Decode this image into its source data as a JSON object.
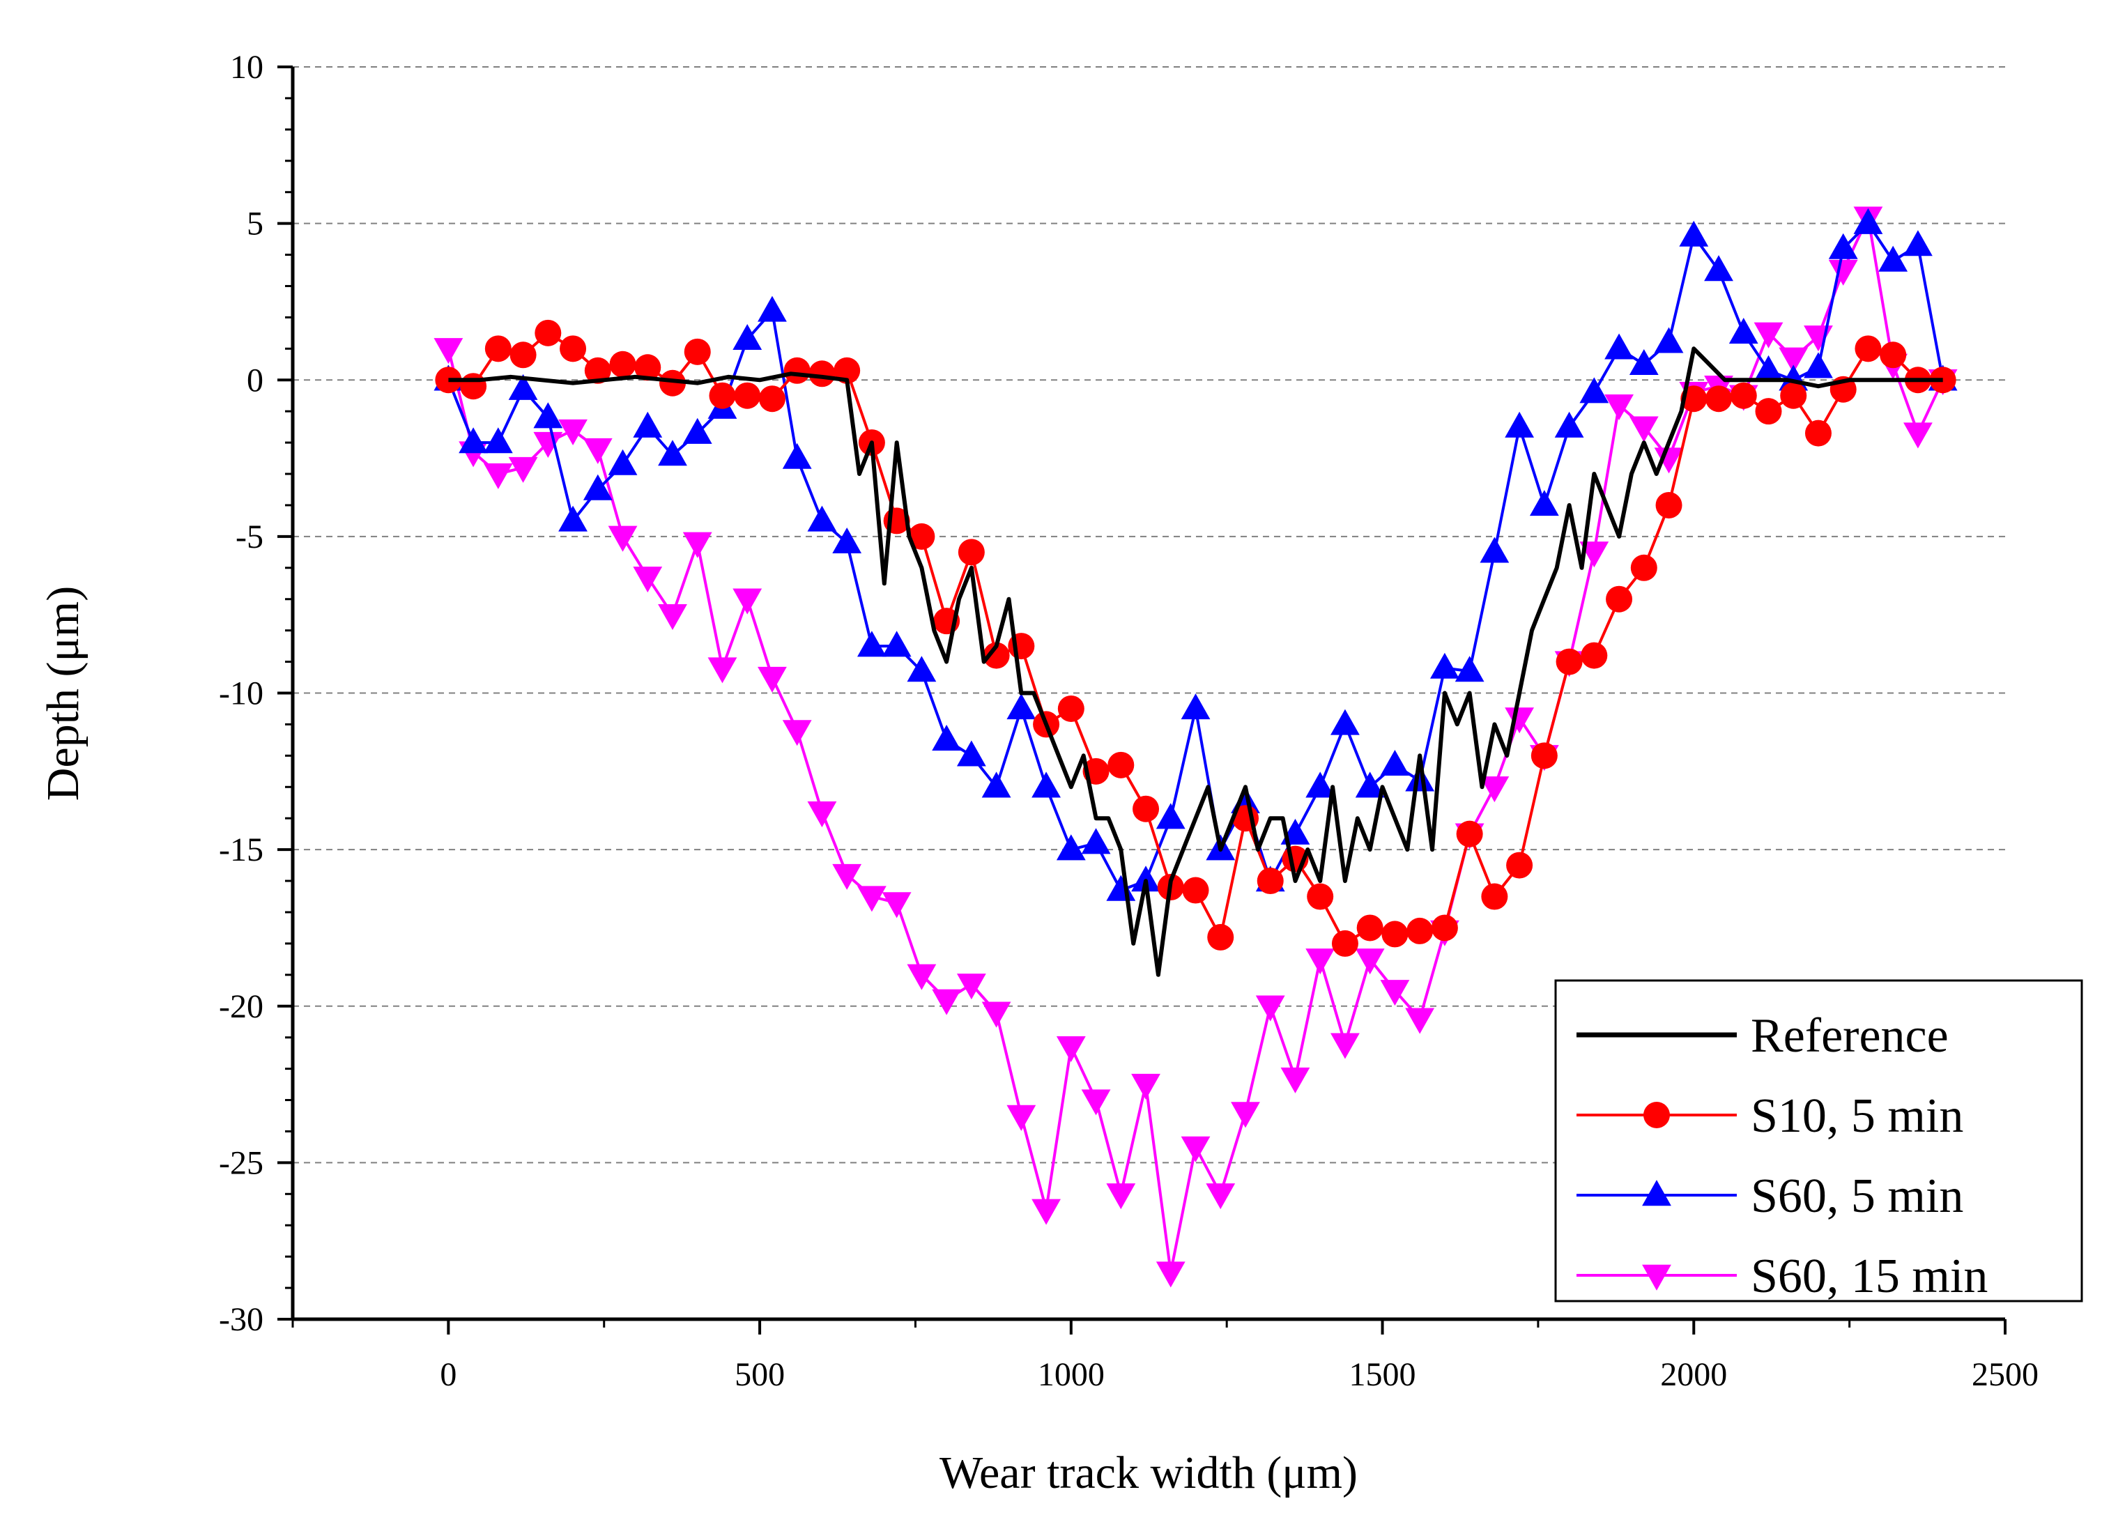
{
  "chart_data": {
    "type": "line",
    "title": "",
    "xlabel": "Wear track width (μm)",
    "ylabel": "Depth (μm)",
    "xlim": [
      -250,
      2500
    ],
    "ylim": [
      -30,
      10
    ],
    "xticks": [
      0,
      500,
      1000,
      1500,
      2000,
      2500
    ],
    "yticks": [
      10,
      5,
      0,
      -5,
      -10,
      -15,
      -20,
      -25,
      -30
    ],
    "grid": "horizontal dashed",
    "legend_position": "bottom-right",
    "series": [
      {
        "name": "Reference",
        "color": "#000000",
        "marker": "none",
        "x": [
          0,
          50,
          100,
          150,
          200,
          250,
          300,
          350,
          400,
          450,
          500,
          550,
          600,
          640,
          660,
          680,
          700,
          720,
          740,
          760,
          780,
          800,
          820,
          840,
          860,
          880,
          900,
          920,
          940,
          960,
          980,
          1000,
          1020,
          1040,
          1060,
          1080,
          1100,
          1120,
          1140,
          1160,
          1180,
          1200,
          1220,
          1240,
          1260,
          1280,
          1300,
          1320,
          1340,
          1360,
          1380,
          1400,
          1420,
          1440,
          1460,
          1480,
          1500,
          1520,
          1540,
          1560,
          1580,
          1600,
          1620,
          1640,
          1660,
          1680,
          1700,
          1720,
          1740,
          1760,
          1780,
          1800,
          1820,
          1840,
          1860,
          1880,
          1900,
          1920,
          1940,
          1960,
          1980,
          2000,
          2050,
          2100,
          2150,
          2200,
          2250,
          2300,
          2350,
          2400
        ],
        "values": [
          0,
          0,
          0.1,
          0,
          -0.1,
          0,
          0.1,
          0,
          -0.1,
          0.1,
          0,
          0.2,
          0.1,
          0,
          -3,
          -2,
          -6.5,
          -2,
          -5,
          -6,
          -8,
          -9,
          -7,
          -6,
          -9,
          -8.5,
          -7,
          -10,
          -10,
          -11,
          -12,
          -13,
          -12,
          -14,
          -14,
          -15,
          -18,
          -16,
          -19,
          -16,
          -15,
          -14,
          -13,
          -15,
          -14,
          -13,
          -15,
          -14,
          -14,
          -16,
          -15,
          -16,
          -13,
          -16,
          -14,
          -15,
          -13,
          -14,
          -15,
          -12,
          -15,
          -10,
          -11,
          -10,
          -13,
          -11,
          -12,
          -10,
          -8,
          -7,
          -6,
          -4,
          -6,
          -3,
          -4,
          -5,
          -3,
          -2,
          -3,
          -2,
          -1,
          1,
          0,
          0,
          0,
          -0.2,
          0,
          0,
          0,
          0
        ]
      },
      {
        "name": "S10, 5 min",
        "color": "#ff0000",
        "marker": "circle",
        "x": [
          0,
          40,
          80,
          120,
          160,
          200,
          240,
          280,
          320,
          360,
          400,
          440,
          480,
          520,
          560,
          600,
          640,
          680,
          720,
          760,
          800,
          840,
          880,
          920,
          960,
          1000,
          1040,
          1080,
          1120,
          1160,
          1200,
          1240,
          1280,
          1320,
          1360,
          1400,
          1440,
          1480,
          1520,
          1560,
          1600,
          1640,
          1680,
          1720,
          1760,
          1800,
          1840,
          1880,
          1920,
          1960,
          2000,
          2040,
          2080,
          2120,
          2160,
          2200,
          2240,
          2280,
          2320,
          2360,
          2400
        ],
        "values": [
          0,
          -0.2,
          1,
          0.8,
          1.5,
          1,
          0.3,
          0.5,
          0.4,
          -0.1,
          0.9,
          -0.5,
          -0.5,
          -0.6,
          0.3,
          0.2,
          0.3,
          -2,
          -4.5,
          -5,
          -7.7,
          -5.5,
          -8.8,
          -8.5,
          -11,
          -10.5,
          -12.5,
          -12.3,
          -13.7,
          -16.2,
          -16.3,
          -17.8,
          -14,
          -16,
          -15.3,
          -16.5,
          -18,
          -17.5,
          -17.7,
          -17.6,
          -17.5,
          -14.5,
          -16.5,
          -15.5,
          -12,
          -9,
          -8.8,
          -7,
          -6,
          -4,
          -0.6,
          -0.6,
          -0.5,
          -1,
          -0.5,
          -1.7,
          -0.3,
          1,
          0.8,
          0,
          0
        ]
      },
      {
        "name": "S60, 5 min",
        "color": "#0000ff",
        "marker": "triangle-up",
        "x": [
          0,
          40,
          80,
          120,
          160,
          200,
          240,
          280,
          320,
          360,
          400,
          440,
          480,
          520,
          560,
          600,
          640,
          680,
          720,
          760,
          800,
          840,
          880,
          920,
          960,
          1000,
          1040,
          1080,
          1120,
          1160,
          1200,
          1240,
          1280,
          1320,
          1360,
          1400,
          1440,
          1480,
          1520,
          1560,
          1600,
          1640,
          1680,
          1720,
          1760,
          1800,
          1840,
          1880,
          1920,
          1960,
          2000,
          2040,
          2080,
          2120,
          2160,
          2200,
          2240,
          2280,
          2320,
          2360,
          2400
        ],
        "values": [
          0,
          -2,
          -2,
          -0.3,
          -1.2,
          -4.5,
          -3.5,
          -2.7,
          -1.5,
          -2.4,
          -1.7,
          -0.9,
          1.3,
          2.2,
          -2.5,
          -4.5,
          -5.2,
          -8.5,
          -8.5,
          -9.3,
          -11.5,
          -12,
          -13,
          -10.5,
          -13,
          -15,
          -14.8,
          -16.3,
          -16,
          -14,
          -10.5,
          -15,
          -13.5,
          -16,
          -14.5,
          -13,
          -11,
          -13,
          -12.3,
          -12.8,
          -9.2,
          -9.3,
          -5.5,
          -1.5,
          -4,
          -1.5,
          -0.4,
          1,
          0.5,
          1.2,
          4.6,
          3.5,
          1.5,
          0.3,
          0,
          0.4,
          4.2,
          5,
          3.8,
          4.3,
          0
        ]
      },
      {
        "name": "S60, 15 min",
        "color": "#ff00ff",
        "marker": "triangle-down",
        "x": [
          0,
          40,
          80,
          120,
          160,
          200,
          240,
          280,
          320,
          360,
          400,
          440,
          480,
          520,
          560,
          600,
          640,
          680,
          720,
          760,
          800,
          840,
          880,
          920,
          960,
          1000,
          1040,
          1080,
          1120,
          1160,
          1200,
          1240,
          1280,
          1320,
          1360,
          1400,
          1440,
          1480,
          1520,
          1560,
          1600,
          1640,
          1680,
          1720,
          1760,
          1800,
          1840,
          1880,
          1920,
          1960,
          2000,
          2040,
          2080,
          2120,
          2160,
          2200,
          2240,
          2280,
          2320,
          2360,
          2400
        ],
        "values": [
          1,
          -2.3,
          -3,
          -2.8,
          -2,
          -1.6,
          -2.2,
          -5,
          -6.3,
          -7.5,
          -5.2,
          -9.2,
          -7,
          -9.5,
          -11.2,
          -13.8,
          -15.8,
          -16.5,
          -16.7,
          -19,
          -19.8,
          -19.3,
          -20.2,
          -23.5,
          -26.5,
          -21.3,
          -23,
          -26,
          -22.5,
          -28.5,
          -24.5,
          -26,
          -23.4,
          -20,
          -22.3,
          -18.5,
          -21.2,
          -18.5,
          -19.5,
          -20.4,
          -17.6,
          -14.5,
          -13,
          -10.8,
          -12,
          -9,
          -5.5,
          -0.8,
          -1.5,
          -2.5,
          -0.4,
          -0.2,
          -0.5,
          1.5,
          0.7,
          1.4,
          3.5,
          5.2,
          0.5,
          -1.7,
          0
        ]
      }
    ]
  }
}
